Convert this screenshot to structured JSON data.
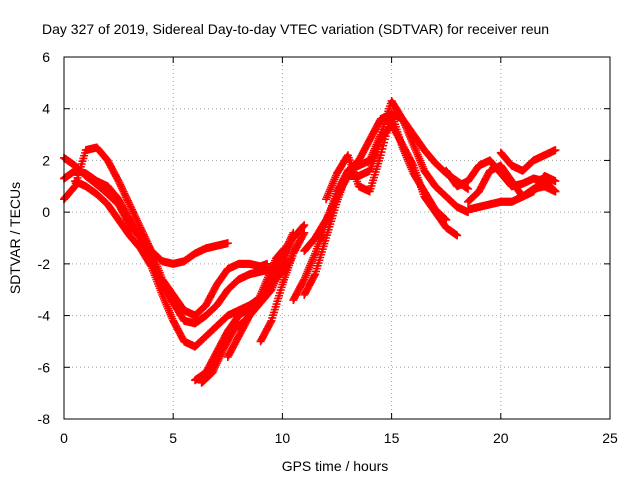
{
  "chart_data": {
    "type": "scatter",
    "title": "Day 327 of 2019, Sidereal Day-to-day VTEC variation (SDTVAR) for receiver reun",
    "xlabel": "GPS time / hours",
    "ylabel": "SDTVAR / TECUs",
    "xlim": [
      0,
      25
    ],
    "ylim": [
      -8,
      6
    ],
    "x_ticks": [
      0,
      5,
      10,
      15,
      20,
      25
    ],
    "x_tick_labels": [
      "0",
      "5",
      "10",
      "15",
      "20",
      "25"
    ],
    "y_ticks": [
      -8,
      -6,
      -4,
      -2,
      0,
      2,
      4,
      6
    ],
    "y_tick_labels": [
      "-8",
      "-6",
      "-4",
      "-2",
      "0",
      "2",
      "4",
      "6"
    ],
    "grid": true,
    "marker": "+",
    "color": "#ff0000",
    "series": [
      {
        "name": "track-1",
        "x": [
          0.0,
          0.5,
          1.0,
          1.3,
          1.6,
          2.0,
          2.5,
          3.0,
          3.5,
          4.0,
          4.5,
          5.0,
          5.5,
          6.0,
          6.5,
          7.0,
          7.5
        ],
        "y": [
          2.1,
          1.8,
          1.4,
          1.2,
          1.0,
          0.7,
          0.3,
          -0.5,
          -1.0,
          -1.5,
          -1.9,
          -2.0,
          -1.9,
          -1.6,
          -1.4,
          -1.3,
          -1.2
        ]
      },
      {
        "name": "track-2",
        "x": [
          0.0,
          0.5,
          1.0,
          1.5,
          2.0,
          2.5,
          3.0,
          3.5,
          4.0,
          4.5,
          5.0,
          5.5,
          6.0,
          6.5,
          7.0,
          7.5,
          8.0,
          8.5,
          9.0,
          9.3
        ],
        "y": [
          0.5,
          1.0,
          2.4,
          2.5,
          2.0,
          1.2,
          0.3,
          -0.6,
          -1.5,
          -2.6,
          -3.2,
          -3.8,
          -4.0,
          -3.6,
          -2.8,
          -2.2,
          -2.0,
          -2.0,
          -2.1,
          -2.0
        ]
      },
      {
        "name": "track-3",
        "x": [
          0.0,
          0.5,
          1.0,
          1.5,
          2.0,
          2.5,
          3.0,
          3.5,
          4.0,
          4.5,
          5.0,
          5.5,
          6.0,
          6.5,
          7.0,
          7.5,
          8.0,
          8.5,
          9.0,
          9.5,
          10.0
        ],
        "y": [
          1.3,
          1.6,
          1.5,
          1.2,
          1.0,
          0.5,
          -0.3,
          -1.0,
          -1.8,
          -2.8,
          -3.5,
          -4.2,
          -4.3,
          -4.0,
          -3.6,
          -3.0,
          -2.6,
          -2.4,
          -2.3,
          -2.2,
          -2.0
        ]
      },
      {
        "name": "track-4",
        "x": [
          0.5,
          1.0,
          1.5,
          2.0,
          2.5,
          3.0,
          3.5,
          4.0,
          4.5,
          5.0,
          5.5,
          6.0,
          6.5,
          7.0,
          7.5,
          8.0,
          8.5,
          9.0,
          9.5,
          10.0,
          10.4
        ],
        "y": [
          1.2,
          1.0,
          0.7,
          0.3,
          -0.3,
          -0.9,
          -1.4,
          -2.1,
          -3.2,
          -4.2,
          -5.0,
          -5.2,
          -4.8,
          -4.4,
          -4.0,
          -3.8,
          -3.6,
          -3.3,
          -2.8,
          -2.3,
          -1.8
        ]
      },
      {
        "name": "track-5",
        "x": [
          6.0,
          6.5,
          7.0,
          7.5,
          8.0,
          8.5,
          9.0,
          9.5,
          10.0,
          10.5
        ],
        "y": [
          -6.5,
          -6.2,
          -5.4,
          -4.6,
          -4.0,
          -3.7,
          -3.3,
          -2.6,
          -1.7,
          -0.8
        ]
      },
      {
        "name": "track-6",
        "x": [
          6.3,
          6.8,
          7.3,
          7.8,
          8.3,
          8.8,
          9.3,
          9.7,
          10.1
        ],
        "y": [
          -6.6,
          -6.2,
          -5.3,
          -4.5,
          -4.2,
          -3.6,
          -2.6,
          -1.8,
          -1.4
        ]
      },
      {
        "name": "track-7",
        "x": [
          7.5,
          8.0,
          8.5,
          9.0,
          9.5,
          10.0,
          10.5,
          11.0
        ],
        "y": [
          -5.6,
          -4.8,
          -4.0,
          -3.5,
          -3.0,
          -2.0,
          -1.0,
          -0.5
        ]
      },
      {
        "name": "track-8",
        "x": [
          9.0,
          9.5,
          10.0,
          10.5,
          11.0
        ],
        "y": [
          -5.0,
          -4.2,
          -2.8,
          -1.6,
          -0.8
        ]
      },
      {
        "name": "track-9",
        "x": [
          10.5,
          11.0,
          11.5,
          12.0,
          12.5,
          13.0,
          13.5,
          14.0,
          14.5,
          15.0,
          15.5,
          16.0,
          16.5,
          17.0,
          17.5,
          18.0,
          18.5
        ],
        "y": [
          -3.4,
          -2.6,
          -1.6,
          -0.4,
          0.8,
          1.6,
          2.0,
          2.8,
          3.6,
          3.8,
          3.6,
          3.0,
          2.4,
          1.9,
          1.5,
          1.2,
          0.9
        ]
      },
      {
        "name": "track-10",
        "x": [
          11.0,
          11.5,
          12.0,
          12.5,
          13.0,
          13.5,
          14.0,
          14.5,
          15.0,
          15.5,
          16.0,
          16.5,
          17.0,
          17.5,
          18.0,
          18.5
        ],
        "y": [
          -3.2,
          -2.4,
          -1.0,
          0.4,
          1.6,
          1.8,
          2.0,
          3.0,
          4.3,
          3.6,
          2.6,
          1.6,
          1.0,
          0.6,
          0.2,
          0.0
        ]
      },
      {
        "name": "track-11",
        "x": [
          11.0,
          11.5,
          12.0,
          12.5,
          13.0,
          13.5,
          14.0,
          14.5,
          15.0,
          15.5,
          16.0,
          16.5,
          17.0,
          17.5,
          18.0
        ],
        "y": [
          -1.5,
          -1.0,
          -0.3,
          0.6,
          1.4,
          1.4,
          1.6,
          2.8,
          3.4,
          2.6,
          1.8,
          0.6,
          0.0,
          -0.6,
          -0.9
        ]
      },
      {
        "name": "track-12",
        "x": [
          12.0,
          12.5,
          13.0,
          13.5,
          14.0,
          14.5,
          15.0,
          15.5,
          16.0,
          16.5,
          17.0,
          17.5
        ],
        "y": [
          0.5,
          1.5,
          2.2,
          1.0,
          0.8,
          2.2,
          3.8,
          2.5,
          1.5,
          0.8,
          0.1,
          -0.3
        ]
      },
      {
        "name": "track-13",
        "x": [
          17.5,
          18.0,
          18.5,
          19.0,
          19.5,
          20.0,
          20.5,
          21.0,
          21.5,
          22.0,
          22.5
        ],
        "y": [
          1.6,
          1.0,
          1.2,
          1.8,
          2.0,
          1.5,
          1.0,
          1.1,
          1.3,
          1.2,
          0.8
        ]
      },
      {
        "name": "track-14",
        "x": [
          18.5,
          19.0,
          19.5,
          20.0,
          20.5,
          21.0,
          21.5,
          22.0,
          22.5
        ],
        "y": [
          0.4,
          0.8,
          1.6,
          1.8,
          1.2,
          0.6,
          0.8,
          1.4,
          1.2
        ]
      },
      {
        "name": "track-15",
        "x": [
          18.5,
          19.0,
          19.5,
          20.0,
          20.5,
          21.0,
          21.5,
          22.0,
          22.5
        ],
        "y": [
          0.1,
          0.2,
          0.3,
          0.4,
          0.4,
          0.6,
          0.9,
          1.0,
          0.8
        ]
      },
      {
        "name": "track-16",
        "x": [
          20.0,
          20.5,
          21.0,
          21.5,
          22.0,
          22.5
        ],
        "y": [
          2.3,
          1.8,
          1.6,
          2.0,
          2.2,
          2.4
        ]
      }
    ]
  }
}
